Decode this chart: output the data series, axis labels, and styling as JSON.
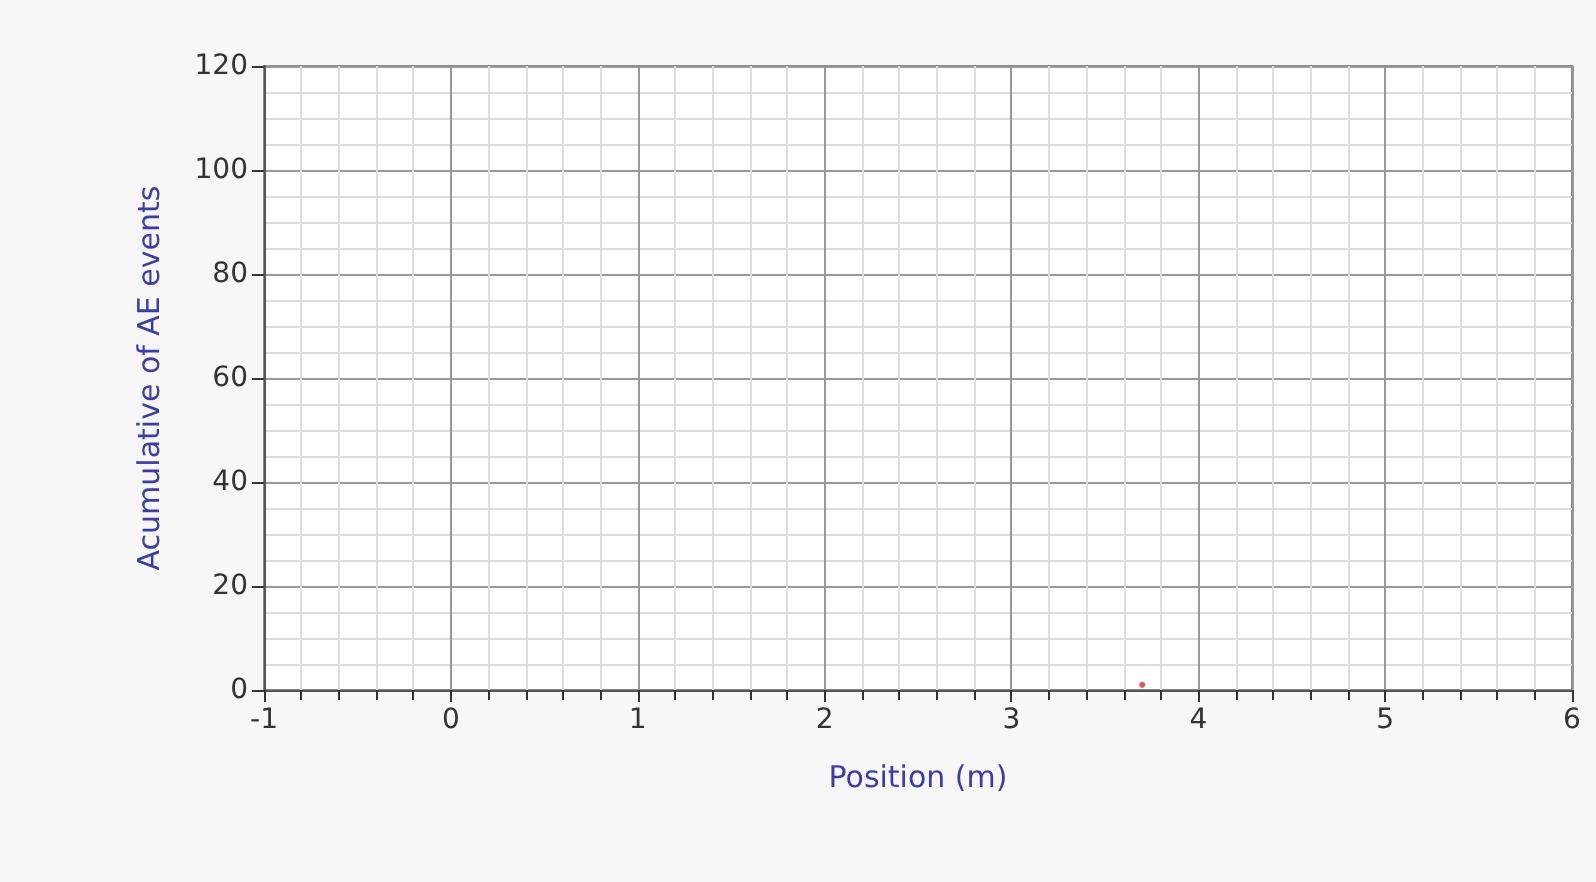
{
  "chart_data": {
    "type": "scatter",
    "xlabel": "Position (m)",
    "ylabel": "Acumulative of AE events",
    "series": [
      {
        "color": "#e03030",
        "x": [
          3.7
        ],
        "values": [
          1
        ]
      }
    ],
    "xlim": [
      -1,
      6
    ],
    "xticks": [
      -1,
      0,
      1,
      2,
      3,
      4,
      5,
      6
    ],
    "ylim": [
      0,
      120
    ],
    "yticks": [
      0,
      20,
      40,
      60,
      80,
      100,
      120
    ],
    "grid": true,
    "marker": "circle"
  }
}
